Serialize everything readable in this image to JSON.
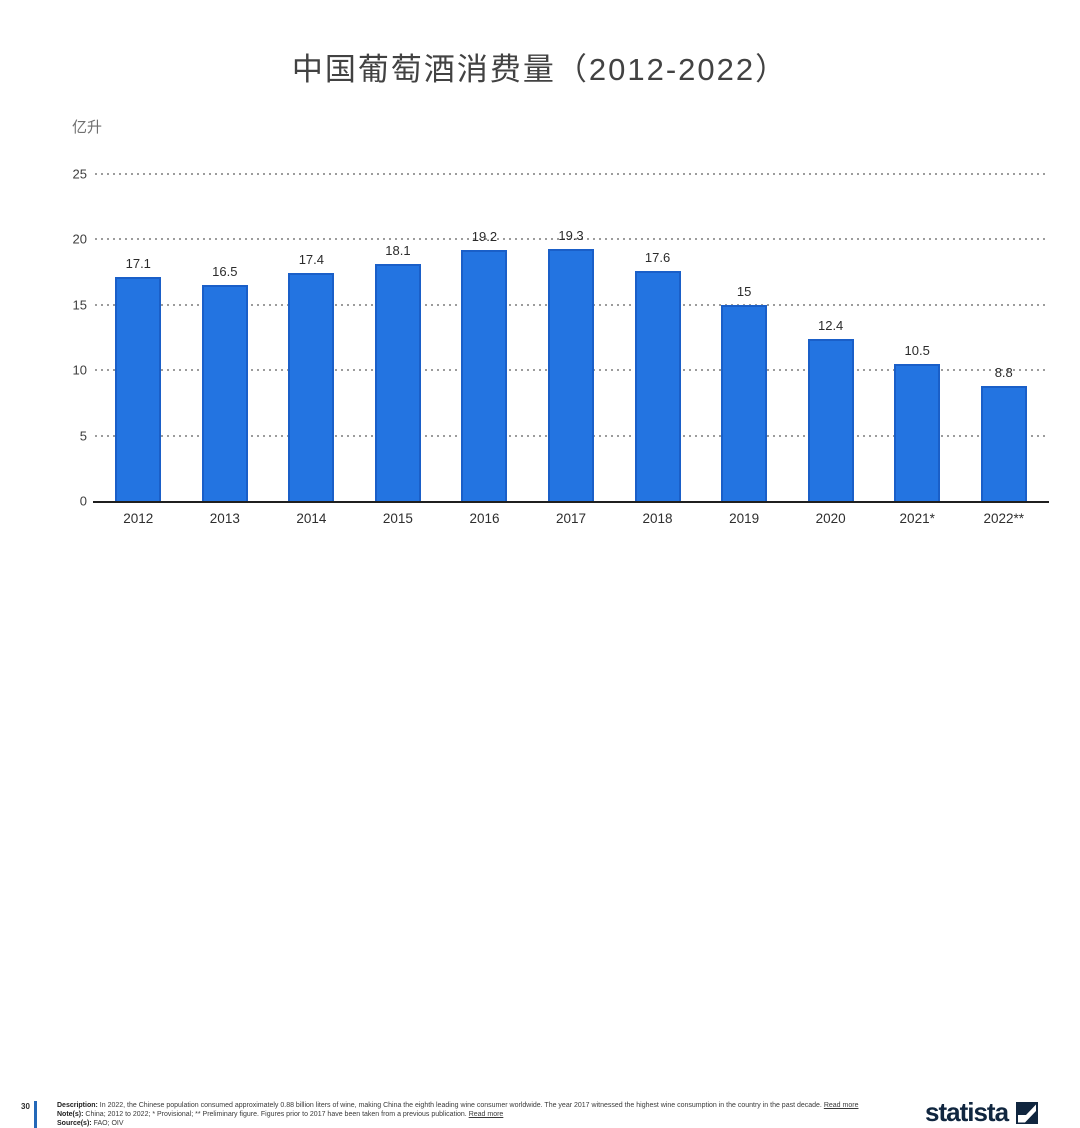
{
  "title": "中国葡萄酒消费量（2012-2022）",
  "chart_data": {
    "type": "bar",
    "title": "中国葡萄酒消费量（2012-2022）",
    "ylabel": "亿升",
    "xlabel": "",
    "categories": [
      "2012",
      "2013",
      "2014",
      "2015",
      "2016",
      "2017",
      "2018",
      "2019",
      "2020",
      "2021*",
      "2022**"
    ],
    "values": [
      17.1,
      16.5,
      17.4,
      18.1,
      19.2,
      19.3,
      17.6,
      15,
      12.4,
      10.5,
      8.8
    ],
    "value_labels": [
      "17.1",
      "16.5",
      "17.4",
      "18.1",
      "19.2",
      "19.3",
      "17.6",
      "15",
      "12.4",
      "10.5",
      "8.8"
    ],
    "y_ticks": [
      0,
      5,
      10,
      15,
      20,
      25
    ],
    "ylim": [
      0,
      25
    ],
    "grid": "horizontal-dotted",
    "legend": "none",
    "bar_color": "#2374e1",
    "bar_border_color": "#1a5fc8"
  },
  "footer": {
    "page_number": "30",
    "accent_color": "#2368b8",
    "description_label": "Description:",
    "description": "In 2022, the Chinese population consumed approximately 0.88 billion liters of wine, making China the eighth leading wine consumer worldwide. The year 2017 witnessed the highest wine consumption in the country in the past decade.",
    "description_link": "Read more",
    "notes_label": "Note(s):",
    "notes": "China; 2012 to 2022; * Provisional; ** Preliminary figure. Figures prior to 2017 have been taken from a previous publication.",
    "notes_link": "Read more",
    "sources_label": "Source(s):",
    "sources": "FAO; OIV",
    "brand": "statista",
    "brand_color": "#10263f"
  }
}
